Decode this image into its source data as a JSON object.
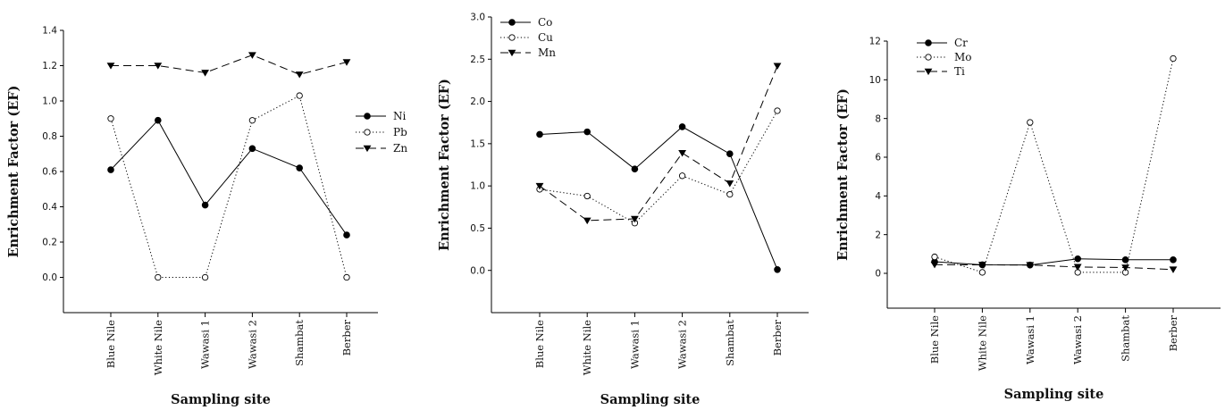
{
  "chart_data": [
    {
      "type": "line",
      "xlabel": "Sampling site",
      "ylabel": "Enrichment Factor (EF)",
      "categories": [
        "Blue Nile",
        "White Nile",
        "Wawasi 1",
        "Wawasi 2",
        "Shambat",
        "Berber"
      ],
      "ylim": [
        -0.2,
        1.4
      ],
      "yticks": [
        "0.0",
        "0.2",
        "0.4",
        "0.6",
        "0.8",
        "1.0",
        "1.2",
        "1.4"
      ],
      "legend_position": "right",
      "series": [
        {
          "name": "Ni",
          "marker": "filled-circle",
          "dash": "solid",
          "values": [
            0.61,
            0.89,
            0.41,
            0.73,
            0.62,
            0.24
          ]
        },
        {
          "name": "Pb",
          "marker": "open-circle",
          "dash": "dotted",
          "values": [
            0.9,
            0.0,
            0.0,
            0.89,
            1.03,
            0.0
          ]
        },
        {
          "name": "Zn",
          "marker": "filled-triangle-down",
          "dash": "dashed",
          "values": [
            1.2,
            1.2,
            1.16,
            1.26,
            1.15,
            1.22
          ]
        }
      ]
    },
    {
      "type": "line",
      "xlabel": "Sampling site",
      "ylabel": "Enrichment Factor (EF)",
      "categories": [
        "Blue Nile",
        "White Nile",
        "Wawasi 1",
        "Wawasi 2",
        "Shambat",
        "Berber"
      ],
      "ylim": [
        -0.5,
        3.0
      ],
      "yticks": [
        "0.0",
        "0.5",
        "1.0",
        "1.5",
        "2.0",
        "2.5",
        "3.0"
      ],
      "legend_position": "top-left",
      "series": [
        {
          "name": "Co",
          "marker": "filled-circle",
          "dash": "solid",
          "values": [
            1.61,
            1.64,
            1.2,
            1.7,
            1.38,
            0.01
          ]
        },
        {
          "name": "Cu",
          "marker": "open-circle",
          "dash": "dotted",
          "values": [
            0.96,
            0.88,
            0.56,
            1.12,
            0.9,
            1.89
          ]
        },
        {
          "name": "Mn",
          "marker": "filled-triangle-down",
          "dash": "dashed",
          "values": [
            1.0,
            0.59,
            0.61,
            1.39,
            1.03,
            2.42
          ]
        }
      ]
    },
    {
      "type": "line",
      "xlabel": "Sampling site",
      "ylabel": "Enrichment Factor (EF)",
      "categories": [
        "Blue Nile",
        "White Nile",
        "Wawasi 1",
        "Wawasi 2",
        "Shambat",
        "Berber"
      ],
      "ylim": [
        -1.8,
        12
      ],
      "yticks": [
        "0",
        "2",
        "4",
        "6",
        "8",
        "10",
        "12"
      ],
      "legend_position": "top-left",
      "series": [
        {
          "name": "Cr",
          "marker": "filled-circle",
          "dash": "solid",
          "values": [
            0.6,
            0.44,
            0.43,
            0.75,
            0.7,
            0.7
          ]
        },
        {
          "name": "Mo",
          "marker": "open-circle",
          "dash": "dotted",
          "values": [
            0.85,
            0.05,
            7.8,
            0.05,
            0.05,
            11.1
          ]
        },
        {
          "name": "Ti",
          "marker": "filled-triangle-down",
          "dash": "dashed",
          "values": [
            0.45,
            0.44,
            0.43,
            0.33,
            0.3,
            0.2
          ]
        }
      ]
    }
  ]
}
